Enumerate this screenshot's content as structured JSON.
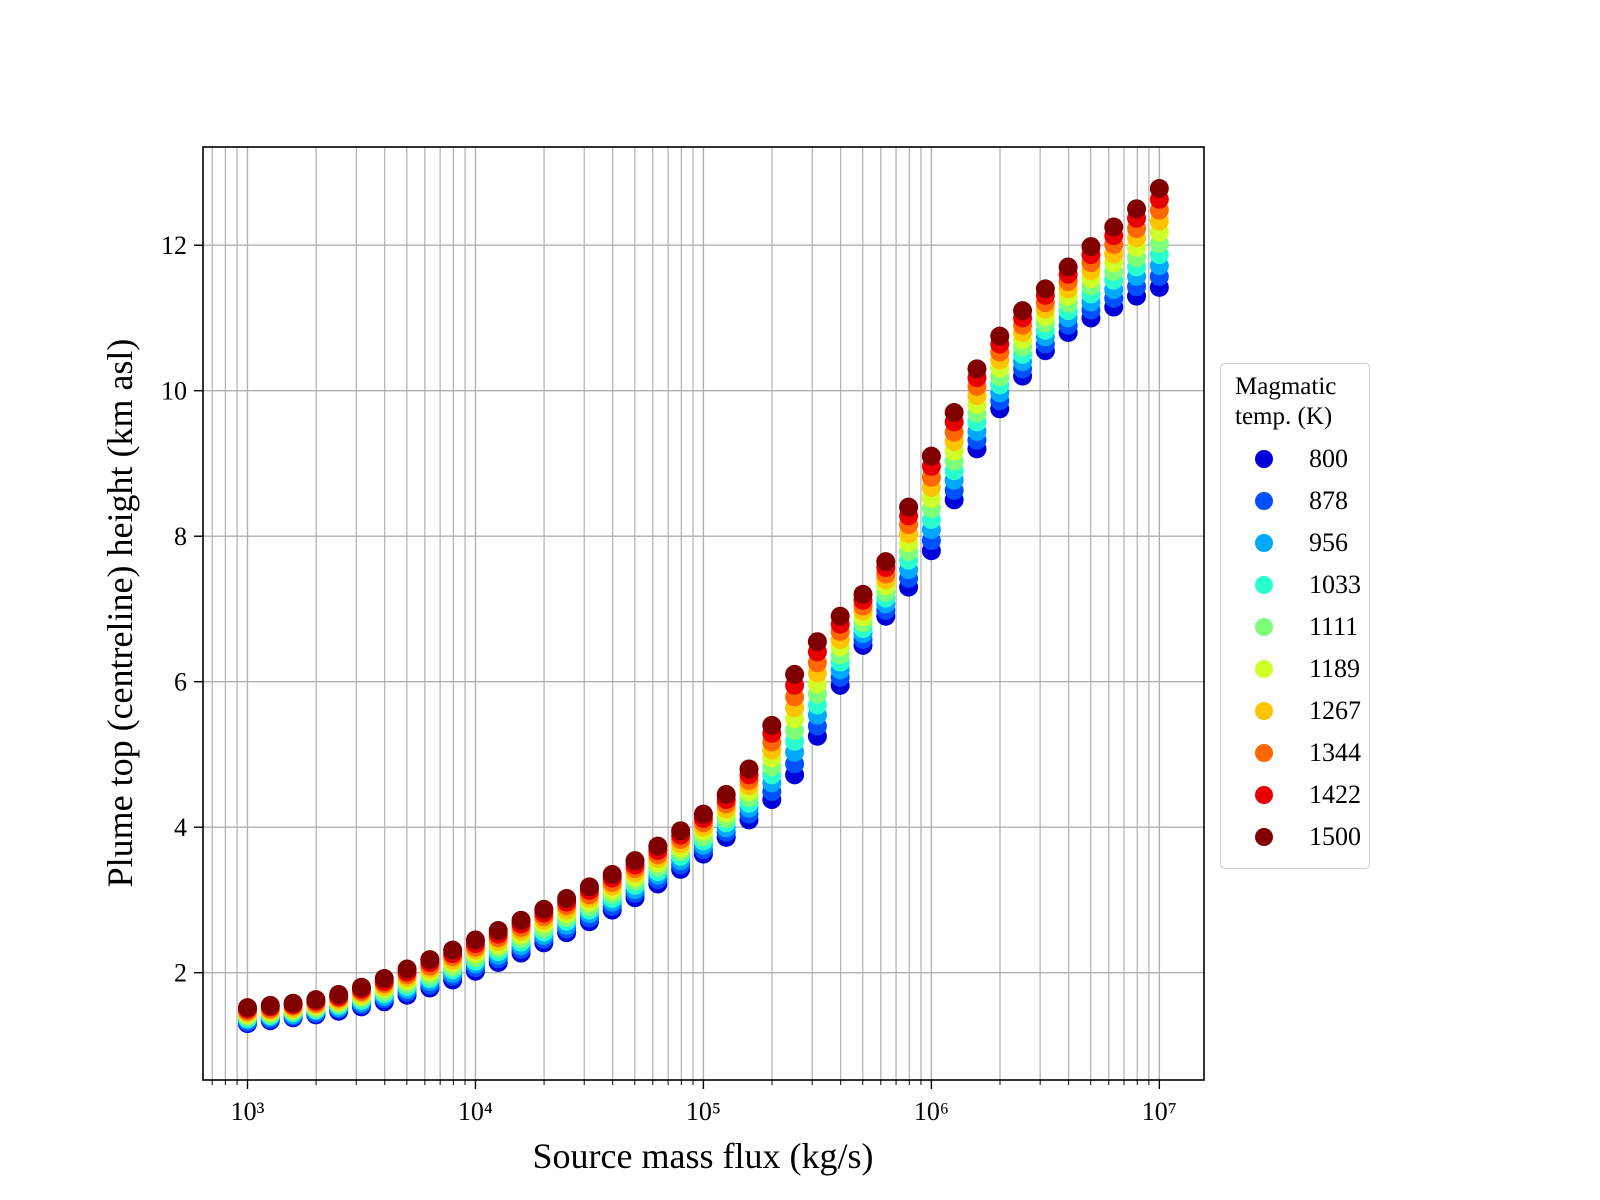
{
  "chart_data": {
    "type": "scatter",
    "x_label": "Source mass flux (kg/s)",
    "y_label": "Plume top (centreline) height (km asl)",
    "x_scale": "log",
    "grid": true,
    "legend_position": "right",
    "legend_title": "Magmatic temp. (K)",
    "xlim": [
      638,
      15700000
    ],
    "ylim": [
      0.525,
      13.35
    ],
    "xticks": [
      {
        "value": 1000,
        "label": "10³"
      },
      {
        "value": 10000,
        "label": "10⁴"
      },
      {
        "value": 100000,
        "label": "10⁵"
      },
      {
        "value": 1000000,
        "label": "10⁶"
      },
      {
        "value": 10000000,
        "label": "10⁷"
      }
    ],
    "xticks_minor": [
      700,
      800,
      900,
      2000,
      3000,
      4000,
      5000,
      6000,
      7000,
      8000,
      9000,
      20000,
      30000,
      40000,
      50000,
      60000,
      70000,
      80000,
      90000,
      200000,
      300000,
      400000,
      500000,
      600000,
      700000,
      800000,
      900000,
      2000000,
      3000000,
      4000000,
      5000000,
      6000000,
      7000000,
      8000000,
      9000000
    ],
    "yticks": [
      2,
      4,
      6,
      8,
      10,
      12
    ],
    "x": [
      1000,
      1259,
      1585,
      1995,
      2512,
      3162,
      3981,
      5012,
      6310,
      7943,
      10000,
      12589,
      15849,
      19953,
      25119,
      31623,
      39811,
      50119,
      63096,
      79433,
      100000,
      125893,
      158489,
      199526,
      251189,
      316228,
      398107,
      501187,
      630957,
      794328,
      1000000,
      1258925,
      1584893,
      1995262,
      2511886,
      3162278,
      3981072,
      5011872,
      6309573,
      7943282,
      10000000
    ],
    "series": [
      {
        "name": "800",
        "color": "#0000d8",
        "values": [
          1.3,
          1.34,
          1.38,
          1.42,
          1.47,
          1.53,
          1.6,
          1.69,
          1.79,
          1.9,
          2.02,
          2.14,
          2.27,
          2.41,
          2.55,
          2.7,
          2.86,
          3.03,
          3.22,
          3.42,
          3.63,
          3.86,
          4.1,
          4.38,
          4.72,
          5.25,
          5.95,
          6.5,
          6.9,
          7.3,
          7.8,
          8.5,
          9.2,
          9.75,
          10.2,
          10.55,
          10.8,
          11.0,
          11.15,
          11.3,
          11.42
        ]
      },
      {
        "name": "878",
        "color": "#0050ff",
        "values": [
          1.32,
          1.36,
          1.4,
          1.44,
          1.5,
          1.56,
          1.64,
          1.73,
          1.83,
          1.95,
          2.07,
          2.19,
          2.32,
          2.46,
          2.6,
          2.75,
          2.91,
          3.09,
          3.28,
          3.48,
          3.69,
          3.93,
          4.18,
          4.49,
          4.87,
          5.39,
          6.06,
          6.58,
          6.98,
          7.42,
          7.94,
          8.63,
          9.32,
          9.86,
          10.3,
          10.64,
          10.9,
          11.11,
          11.27,
          11.43,
          11.57
        ]
      },
      {
        "name": "956",
        "color": "#00a8ff",
        "values": [
          1.35,
          1.39,
          1.42,
          1.47,
          1.52,
          1.59,
          1.67,
          1.77,
          1.88,
          1.99,
          2.12,
          2.24,
          2.37,
          2.51,
          2.65,
          2.81,
          2.97,
          3.14,
          3.34,
          3.54,
          3.75,
          3.99,
          4.26,
          4.61,
          5.03,
          5.54,
          6.16,
          6.66,
          7.07,
          7.54,
          8.09,
          8.77,
          9.44,
          9.97,
          10.4,
          10.74,
          11.0,
          11.22,
          11.39,
          11.57,
          11.72
        ]
      },
      {
        "name": "1033",
        "color": "#29ffce",
        "values": [
          1.37,
          1.41,
          1.45,
          1.49,
          1.55,
          1.62,
          1.71,
          1.81,
          1.92,
          2.04,
          2.16,
          2.29,
          2.42,
          2.56,
          2.71,
          2.86,
          3.02,
          3.2,
          3.39,
          3.6,
          3.81,
          4.06,
          4.33,
          4.72,
          5.18,
          5.68,
          6.27,
          6.73,
          7.15,
          7.67,
          8.23,
          8.9,
          9.57,
          10.08,
          10.5,
          10.83,
          11.1,
          11.33,
          11.52,
          11.7,
          11.87
        ]
      },
      {
        "name": "1111",
        "color": "#7dff7a",
        "values": [
          1.4,
          1.43,
          1.47,
          1.51,
          1.57,
          1.65,
          1.74,
          1.85,
          1.96,
          2.08,
          2.21,
          2.34,
          2.47,
          2.61,
          2.76,
          2.91,
          3.08,
          3.26,
          3.45,
          3.66,
          3.87,
          4.12,
          4.41,
          4.83,
          5.33,
          5.83,
          6.37,
          6.81,
          7.23,
          7.79,
          8.38,
          9.03,
          9.69,
          10.19,
          10.6,
          10.93,
          11.2,
          11.44,
          11.64,
          11.83,
          12.02
        ]
      },
      {
        "name": "1189",
        "color": "#ceff29",
        "values": [
          1.42,
          1.46,
          1.49,
          1.54,
          1.6,
          1.68,
          1.78,
          1.89,
          2.01,
          2.13,
          2.26,
          2.38,
          2.52,
          2.67,
          2.81,
          2.97,
          3.13,
          3.31,
          3.51,
          3.71,
          3.94,
          4.19,
          4.49,
          4.95,
          5.49,
          5.97,
          6.48,
          6.89,
          7.32,
          7.91,
          8.52,
          9.17,
          9.81,
          10.31,
          10.7,
          11.02,
          11.3,
          11.54,
          11.76,
          11.97,
          12.18
        ]
      },
      {
        "name": "1267",
        "color": "#ffc400",
        "values": [
          1.45,
          1.48,
          1.51,
          1.56,
          1.62,
          1.71,
          1.81,
          1.93,
          2.05,
          2.17,
          2.31,
          2.43,
          2.57,
          2.72,
          2.86,
          3.02,
          3.19,
          3.37,
          3.57,
          3.77,
          4.0,
          4.25,
          4.57,
          5.06,
          5.64,
          6.12,
          6.58,
          6.97,
          7.4,
          8.03,
          8.67,
          9.3,
          9.93,
          10.42,
          10.8,
          11.12,
          11.4,
          11.65,
          11.88,
          12.1,
          12.33
        ]
      },
      {
        "name": "1344",
        "color": "#ff6800",
        "values": [
          1.47,
          1.5,
          1.54,
          1.58,
          1.65,
          1.74,
          1.85,
          1.97,
          2.09,
          2.22,
          2.35,
          2.48,
          2.62,
          2.77,
          2.92,
          3.07,
          3.24,
          3.43,
          3.62,
          3.83,
          4.06,
          4.32,
          4.64,
          5.17,
          5.79,
          6.26,
          6.69,
          7.04,
          7.48,
          8.16,
          8.81,
          9.43,
          10.06,
          10.53,
          10.9,
          11.21,
          11.5,
          11.76,
          12.01,
          12.23,
          12.48
        ]
      },
      {
        "name": "1422",
        "color": "#e80000",
        "values": [
          1.5,
          1.53,
          1.56,
          1.61,
          1.67,
          1.77,
          1.88,
          2.01,
          2.14,
          2.26,
          2.4,
          2.53,
          2.67,
          2.82,
          2.97,
          3.13,
          3.3,
          3.48,
          3.68,
          3.89,
          4.12,
          4.38,
          4.72,
          5.29,
          5.95,
          6.41,
          6.79,
          7.12,
          7.57,
          8.28,
          8.96,
          9.57,
          10.18,
          10.64,
          11.0,
          11.31,
          11.6,
          11.87,
          12.13,
          12.37,
          12.63
        ]
      },
      {
        "name": "1500",
        "color": "#800000",
        "values": [
          1.52,
          1.55,
          1.58,
          1.63,
          1.7,
          1.8,
          1.92,
          2.05,
          2.18,
          2.31,
          2.45,
          2.58,
          2.72,
          2.87,
          3.02,
          3.18,
          3.35,
          3.54,
          3.74,
          3.95,
          4.18,
          4.45,
          4.8,
          5.4,
          6.1,
          6.55,
          6.9,
          7.2,
          7.65,
          8.4,
          9.1,
          9.7,
          10.3,
          10.75,
          11.1,
          11.4,
          11.7,
          11.98,
          12.25,
          12.5,
          12.78
        ]
      }
    ]
  }
}
